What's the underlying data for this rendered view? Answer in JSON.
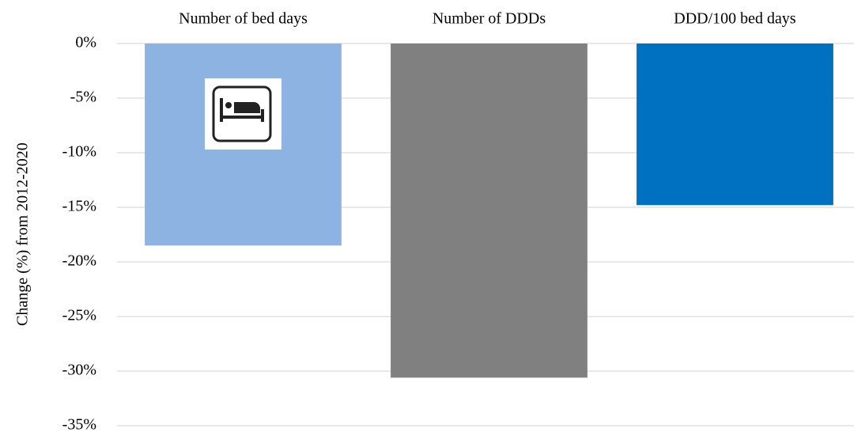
{
  "chart_data": {
    "type": "bar",
    "y_label": "Change (%) from 2012-2020",
    "categories": [
      "Number of bed days",
      "Number of DDDs",
      "DDD/100 bed days"
    ],
    "values": [
      -18.5,
      -30.6,
      -14.8
    ],
    "colors": [
      "#8db3e2",
      "#808080",
      "#0070c0"
    ],
    "ylim": [
      -35,
      0
    ],
    "yticks": [
      {
        "value": 0,
        "label": "0%"
      },
      {
        "value": -5,
        "label": "-5%"
      },
      {
        "value": -10,
        "label": "-10%"
      },
      {
        "value": -15,
        "label": "-15%"
      },
      {
        "value": -20,
        "label": "-20%"
      },
      {
        "value": -25,
        "label": "-25%"
      },
      {
        "value": -30,
        "label": "-30%"
      },
      {
        "value": -35,
        "label": "-35%"
      }
    ],
    "grid": true
  }
}
